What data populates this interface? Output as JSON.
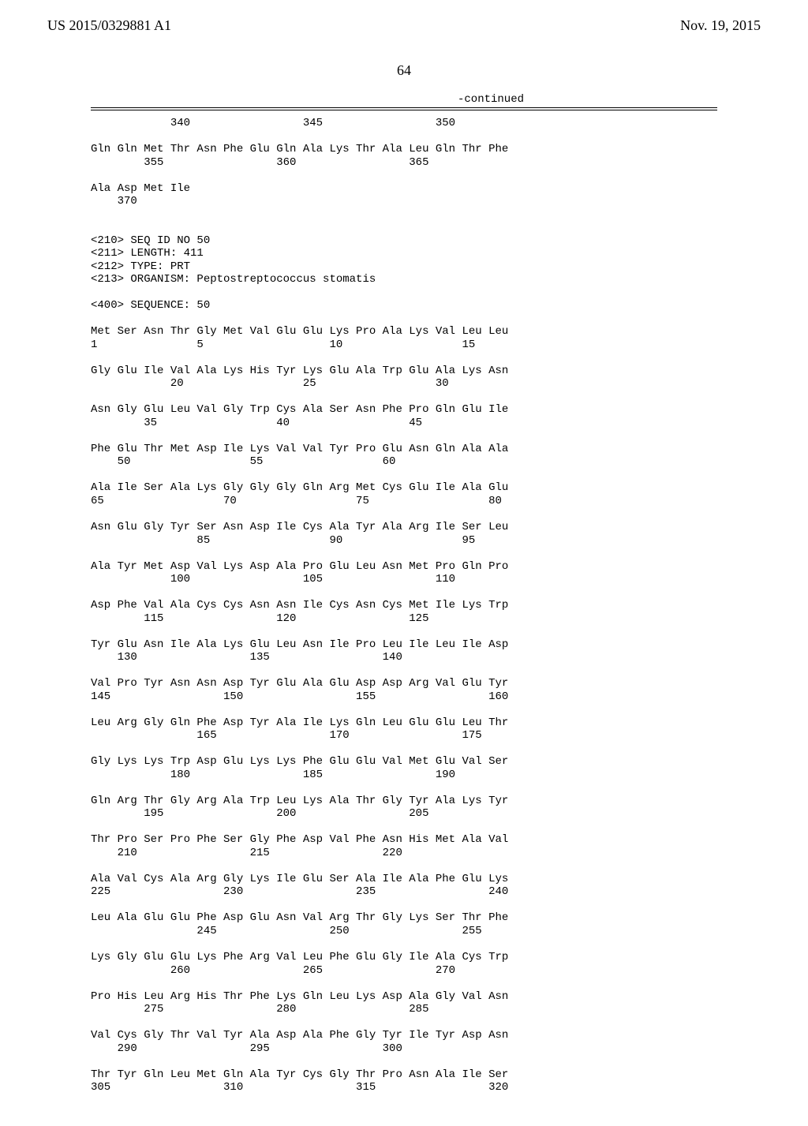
{
  "header": {
    "left": "US 2015/0329881 A1",
    "right": "Nov. 19, 2015"
  },
  "pagenum": "64",
  "continued": "-continued",
  "seq_text": "            340                 345                 350\n\nGln Gln Met Thr Asn Phe Glu Gln Ala Lys Thr Ala Leu Gln Thr Phe\n        355                 360                 365\n\nAla Asp Met Ile\n    370\n\n\n<210> SEQ ID NO 50\n<211> LENGTH: 411\n<212> TYPE: PRT\n<213> ORGANISM: Peptostreptococcus stomatis\n\n<400> SEQUENCE: 50\n\nMet Ser Asn Thr Gly Met Val Glu Glu Lys Pro Ala Lys Val Leu Leu\n1               5                   10                  15\n\nGly Glu Ile Val Ala Lys His Tyr Lys Glu Ala Trp Glu Ala Lys Asn\n            20                  25                  30\n\nAsn Gly Glu Leu Val Gly Trp Cys Ala Ser Asn Phe Pro Gln Glu Ile\n        35                  40                  45\n\nPhe Glu Thr Met Asp Ile Lys Val Val Tyr Pro Glu Asn Gln Ala Ala\n    50                  55                  60\n\nAla Ile Ser Ala Lys Gly Gly Gly Gln Arg Met Cys Glu Ile Ala Glu\n65                  70                  75                  80\n\nAsn Glu Gly Tyr Ser Asn Asp Ile Cys Ala Tyr Ala Arg Ile Ser Leu\n                85                  90                  95\n\nAla Tyr Met Asp Val Lys Asp Ala Pro Glu Leu Asn Met Pro Gln Pro\n            100                 105                 110\n\nAsp Phe Val Ala Cys Cys Asn Asn Ile Cys Asn Cys Met Ile Lys Trp\n        115                 120                 125\n\nTyr Glu Asn Ile Ala Lys Glu Leu Asn Ile Pro Leu Ile Leu Ile Asp\n    130                 135                 140\n\nVal Pro Tyr Asn Asn Asp Tyr Glu Ala Glu Asp Asp Arg Val Glu Tyr\n145                 150                 155                 160\n\nLeu Arg Gly Gln Phe Asp Tyr Ala Ile Lys Gln Leu Glu Glu Leu Thr\n                165                 170                 175\n\nGly Lys Lys Trp Asp Glu Lys Lys Phe Glu Glu Val Met Glu Val Ser\n            180                 185                 190\n\nGln Arg Thr Gly Arg Ala Trp Leu Lys Ala Thr Gly Tyr Ala Lys Tyr\n        195                 200                 205\n\nThr Pro Ser Pro Phe Ser Gly Phe Asp Val Phe Asn His Met Ala Val\n    210                 215                 220\n\nAla Val Cys Ala Arg Gly Lys Ile Glu Ser Ala Ile Ala Phe Glu Lys\n225                 230                 235                 240\n\nLeu Ala Glu Glu Phe Asp Glu Asn Val Arg Thr Gly Lys Ser Thr Phe\n                245                 250                 255\n\nLys Gly Glu Glu Lys Phe Arg Val Leu Phe Glu Gly Ile Ala Cys Trp\n            260                 265                 270\n\nPro His Leu Arg His Thr Phe Lys Gln Leu Lys Asp Ala Gly Val Asn\n        275                 280                 285\n\nVal Cys Gly Thr Val Tyr Ala Asp Ala Phe Gly Tyr Ile Tyr Asp Asn\n    290                 295                 300\n\nThr Tyr Gln Leu Met Gln Ala Tyr Cys Gly Thr Pro Asn Ala Ile Ser\n305                 310                 315                 320"
}
